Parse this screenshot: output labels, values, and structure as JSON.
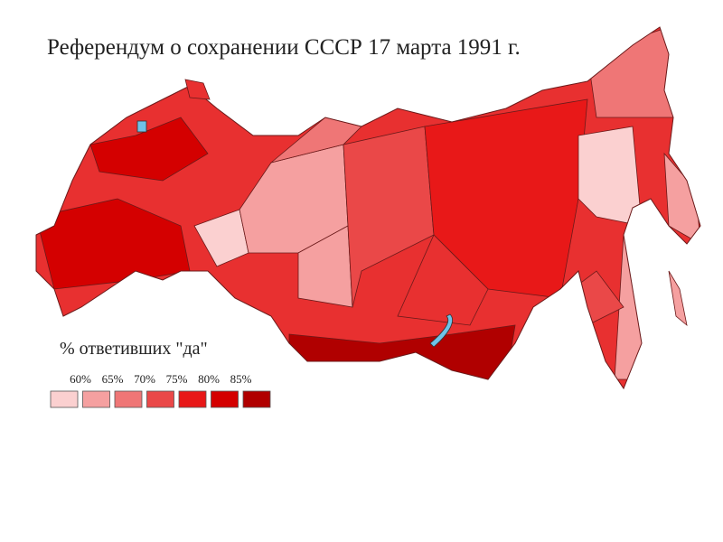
{
  "title": "Референдум о сохранении СССР 17 марта 1991 г.",
  "legend": {
    "title": "% ответивших \"да\"",
    "labels": [
      "60%",
      "65%",
      "70%",
      "75%",
      "80%",
      "85%"
    ],
    "colors": [
      "#fbd0d0",
      "#f5a0a0",
      "#ef7676",
      "#ea4848",
      "#e81818",
      "#d40000",
      "#b00000"
    ]
  }
}
